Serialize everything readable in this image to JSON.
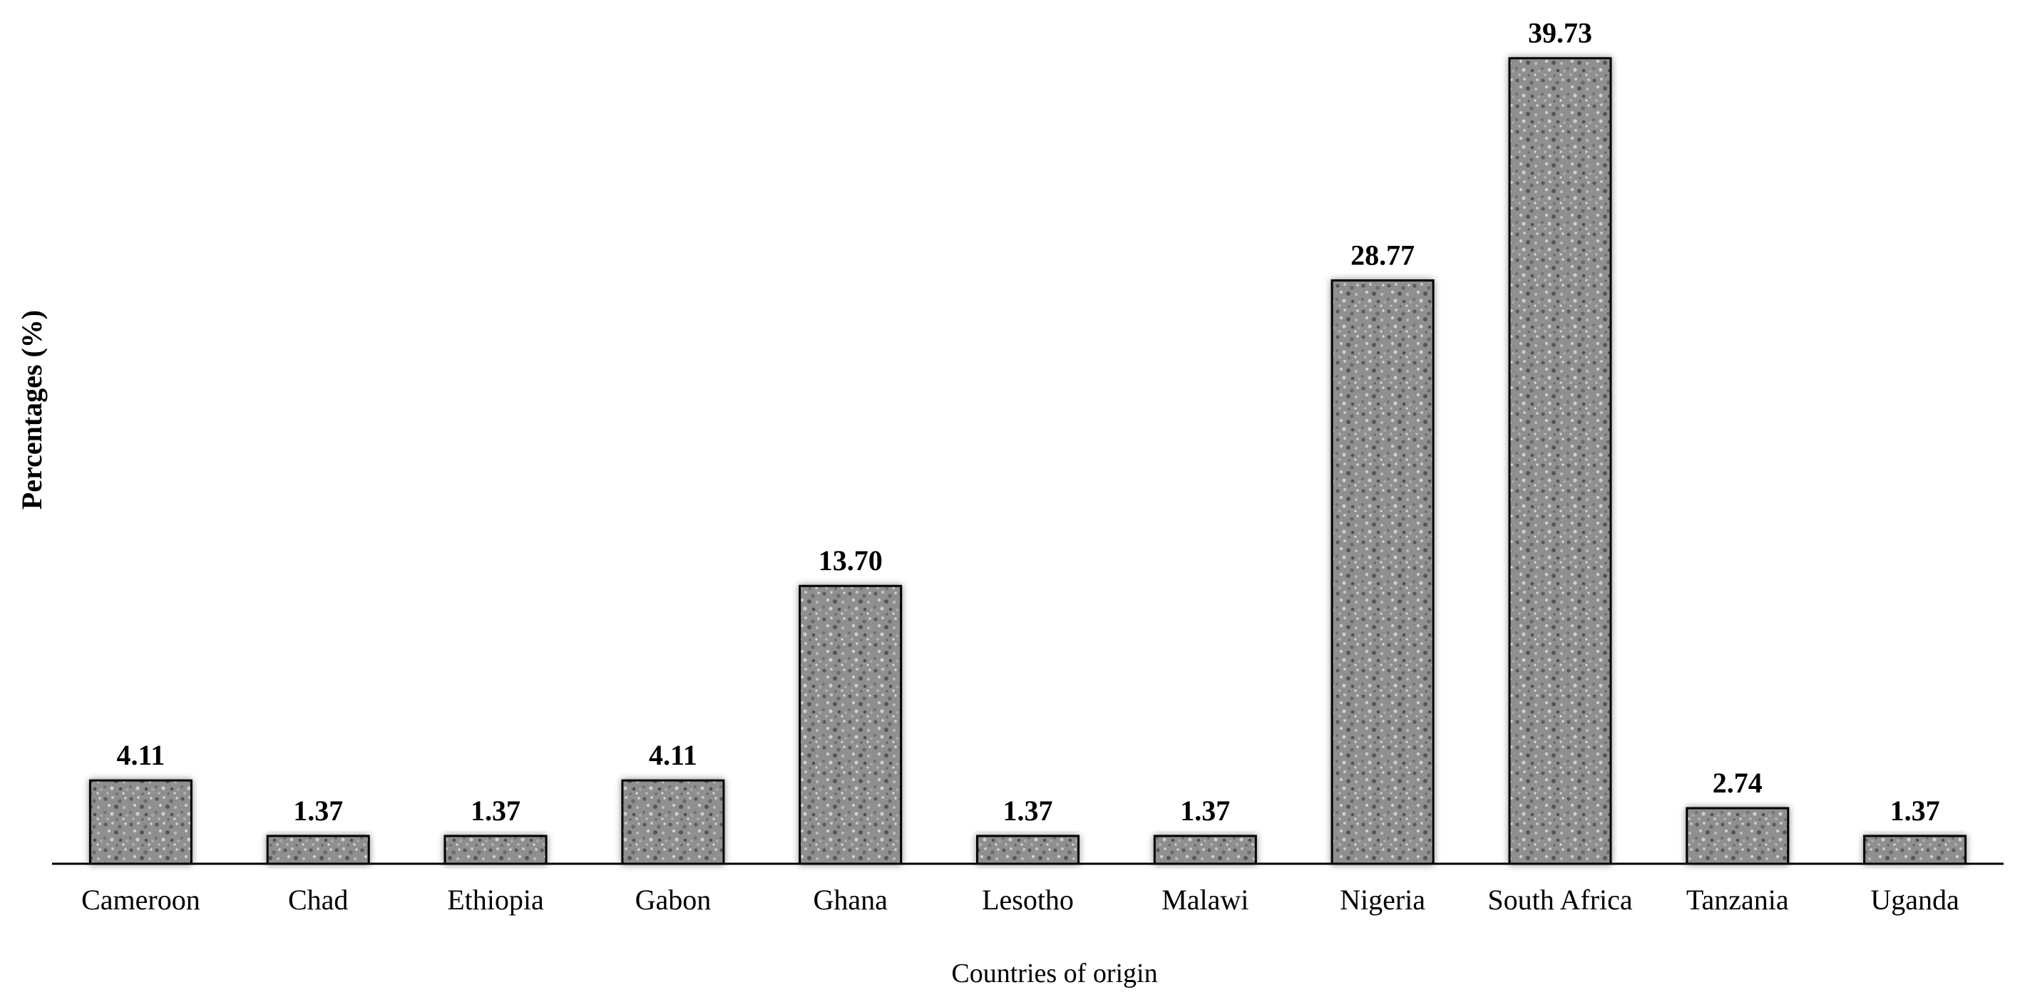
{
  "chart_data": {
    "type": "bar",
    "title": "",
    "xlabel": "Countries of origin",
    "ylabel": "Percentages (%)",
    "ylim": [
      0,
      40
    ],
    "grid": false,
    "legend": "none",
    "categories": [
      "Cameroon",
      "Chad",
      "Ethiopia",
      "Gabon",
      "Ghana",
      "Lesotho",
      "Malawi",
      "Nigeria",
      "South Africa",
      "Tanzania",
      "Uganda"
    ],
    "values": [
      4.11,
      1.37,
      1.37,
      4.11,
      13.7,
      1.37,
      1.37,
      28.77,
      39.73,
      2.74,
      1.37
    ],
    "value_labels": [
      "4.11",
      "1.37",
      "1.37",
      "4.11",
      "13.70",
      "1.37",
      "1.37",
      "28.77",
      "39.73",
      "2.74",
      "1.37"
    ],
    "colors": {
      "bar_fill_base": "#8c8c8c",
      "bar_outline": "#000000",
      "axis": "#000000"
    }
  }
}
